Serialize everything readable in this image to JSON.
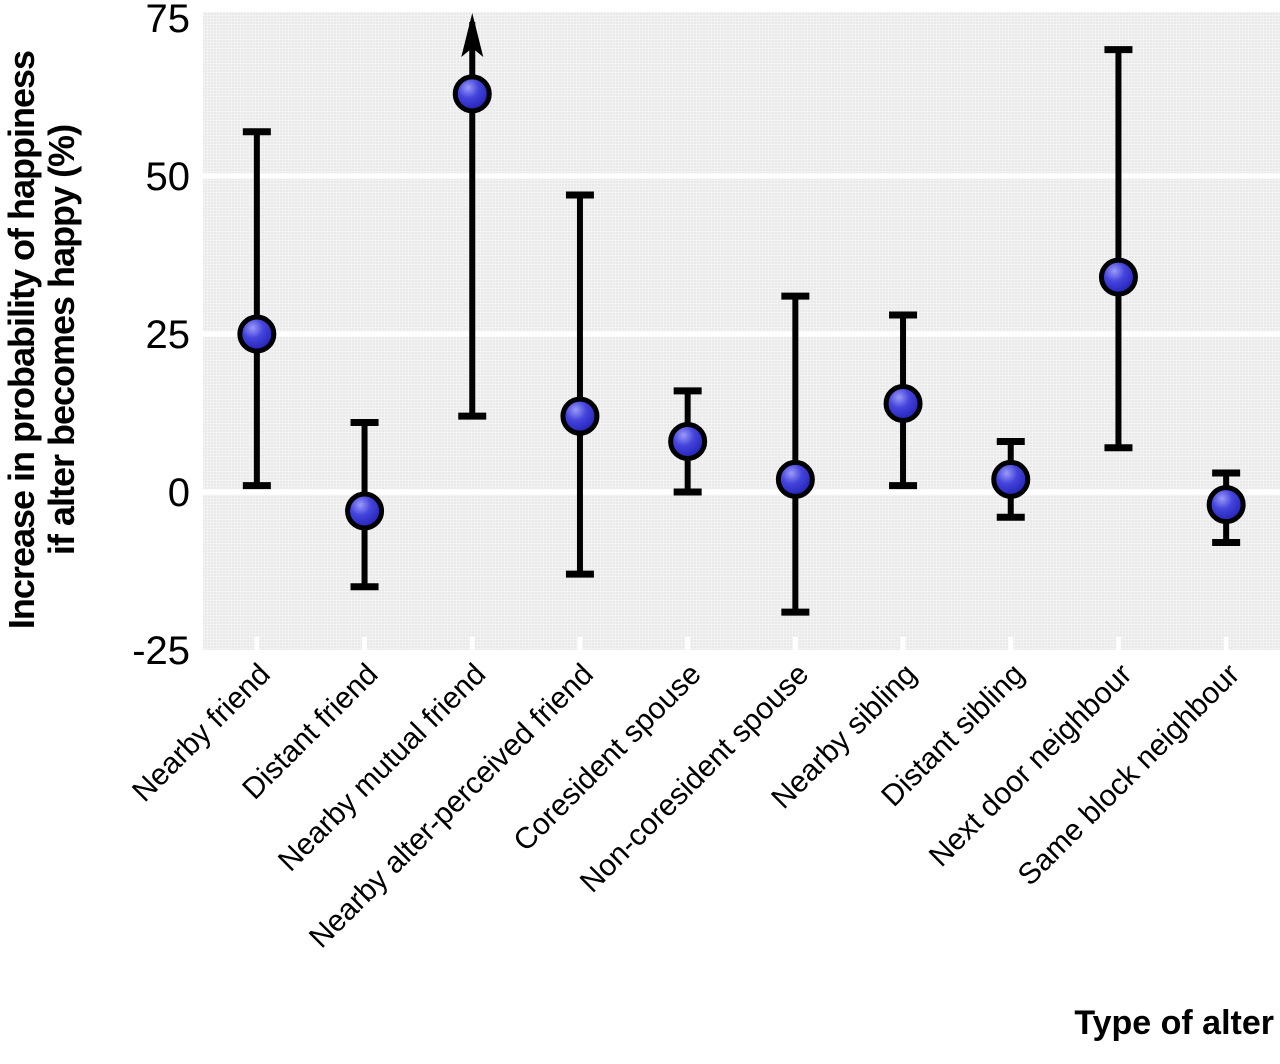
{
  "page": {
    "background_color": "#ffffff",
    "description": "Statistical chart: point estimates with 95% confidence-interval error bars for the increase in probability of happiness by type of social contact (alter)"
  },
  "chart_data": {
    "type": "scatter",
    "subtype": "point-estimate-with-error-bars",
    "title": "",
    "xlabel": "Type of alter",
    "ylabel": "Increase in probability of happiness if alter becomes happy (%)",
    "ylabel_lines": [
      "Increase in probability of happiness",
      "if alter becomes happy (%)"
    ],
    "ylim": [
      -25,
      76
    ],
    "ytick_labels": [
      "75",
      "50",
      "25",
      "0",
      "-25"
    ],
    "ytick_values": [
      75,
      50,
      25,
      0,
      -25
    ],
    "gridline_values": [
      50,
      25,
      0
    ],
    "grid": "horizontal white gridlines on light grey panel",
    "legend": "none",
    "categories": [
      "Nearby friend",
      "Distant friend",
      "Nearby mutual friend",
      "Nearby alter-perceived friend",
      "Coresident spouse",
      "Non-coresident spouse",
      "Nearby sibling",
      "Distant sibling",
      "Next door neighbour",
      "Same block neighbour"
    ],
    "series": [
      {
        "name": "Increase in probability of happiness (%)",
        "marker": "blue ball with black outline",
        "points": [
          {
            "category": "Nearby friend",
            "value": 25,
            "ci_low": 1,
            "ci_high": 57,
            "ci_high_offscale": false
          },
          {
            "category": "Distant friend",
            "value": -3,
            "ci_low": -15,
            "ci_high": 11,
            "ci_high_offscale": false
          },
          {
            "category": "Nearby mutual friend",
            "value": 63,
            "ci_low": 12,
            "ci_high": null,
            "ci_high_offscale": true
          },
          {
            "category": "Nearby alter-perceived friend",
            "value": 12,
            "ci_low": -13,
            "ci_high": 47,
            "ci_high_offscale": false
          },
          {
            "category": "Coresident spouse",
            "value": 8,
            "ci_low": 0,
            "ci_high": 16,
            "ci_high_offscale": false
          },
          {
            "category": "Non-coresident spouse",
            "value": 2,
            "ci_low": -19,
            "ci_high": 31,
            "ci_high_offscale": false
          },
          {
            "category": "Nearby sibling",
            "value": 14,
            "ci_low": 1,
            "ci_high": 28,
            "ci_high_offscale": false
          },
          {
            "category": "Distant sibling",
            "value": 2,
            "ci_low": -4,
            "ci_high": 8,
            "ci_high_offscale": false
          },
          {
            "category": "Next door neighbour",
            "value": 34,
            "ci_low": 7,
            "ci_high": 70,
            "ci_high_offscale": false
          },
          {
            "category": "Same block neighbour",
            "value": -2,
            "ci_low": -8,
            "ci_high": 3,
            "ci_high_offscale": false
          }
        ]
      }
    ],
    "annotations": [
      "Upward arrow on the 'Nearby mutual friend' upper error bar: confidence interval extends above the top of the y axis"
    ],
    "colors": {
      "panel_background": "#ebebeb",
      "panel_mesh": "#ffffff",
      "gridline": "#ffffff",
      "marker_fill_highlight": "#9a9af8",
      "marker_fill_mid": "#3b3bd8",
      "marker_fill_dark": "#1d1d99",
      "marker_outline": "#000000",
      "error_bar": "#000000",
      "text": "#000000"
    }
  }
}
